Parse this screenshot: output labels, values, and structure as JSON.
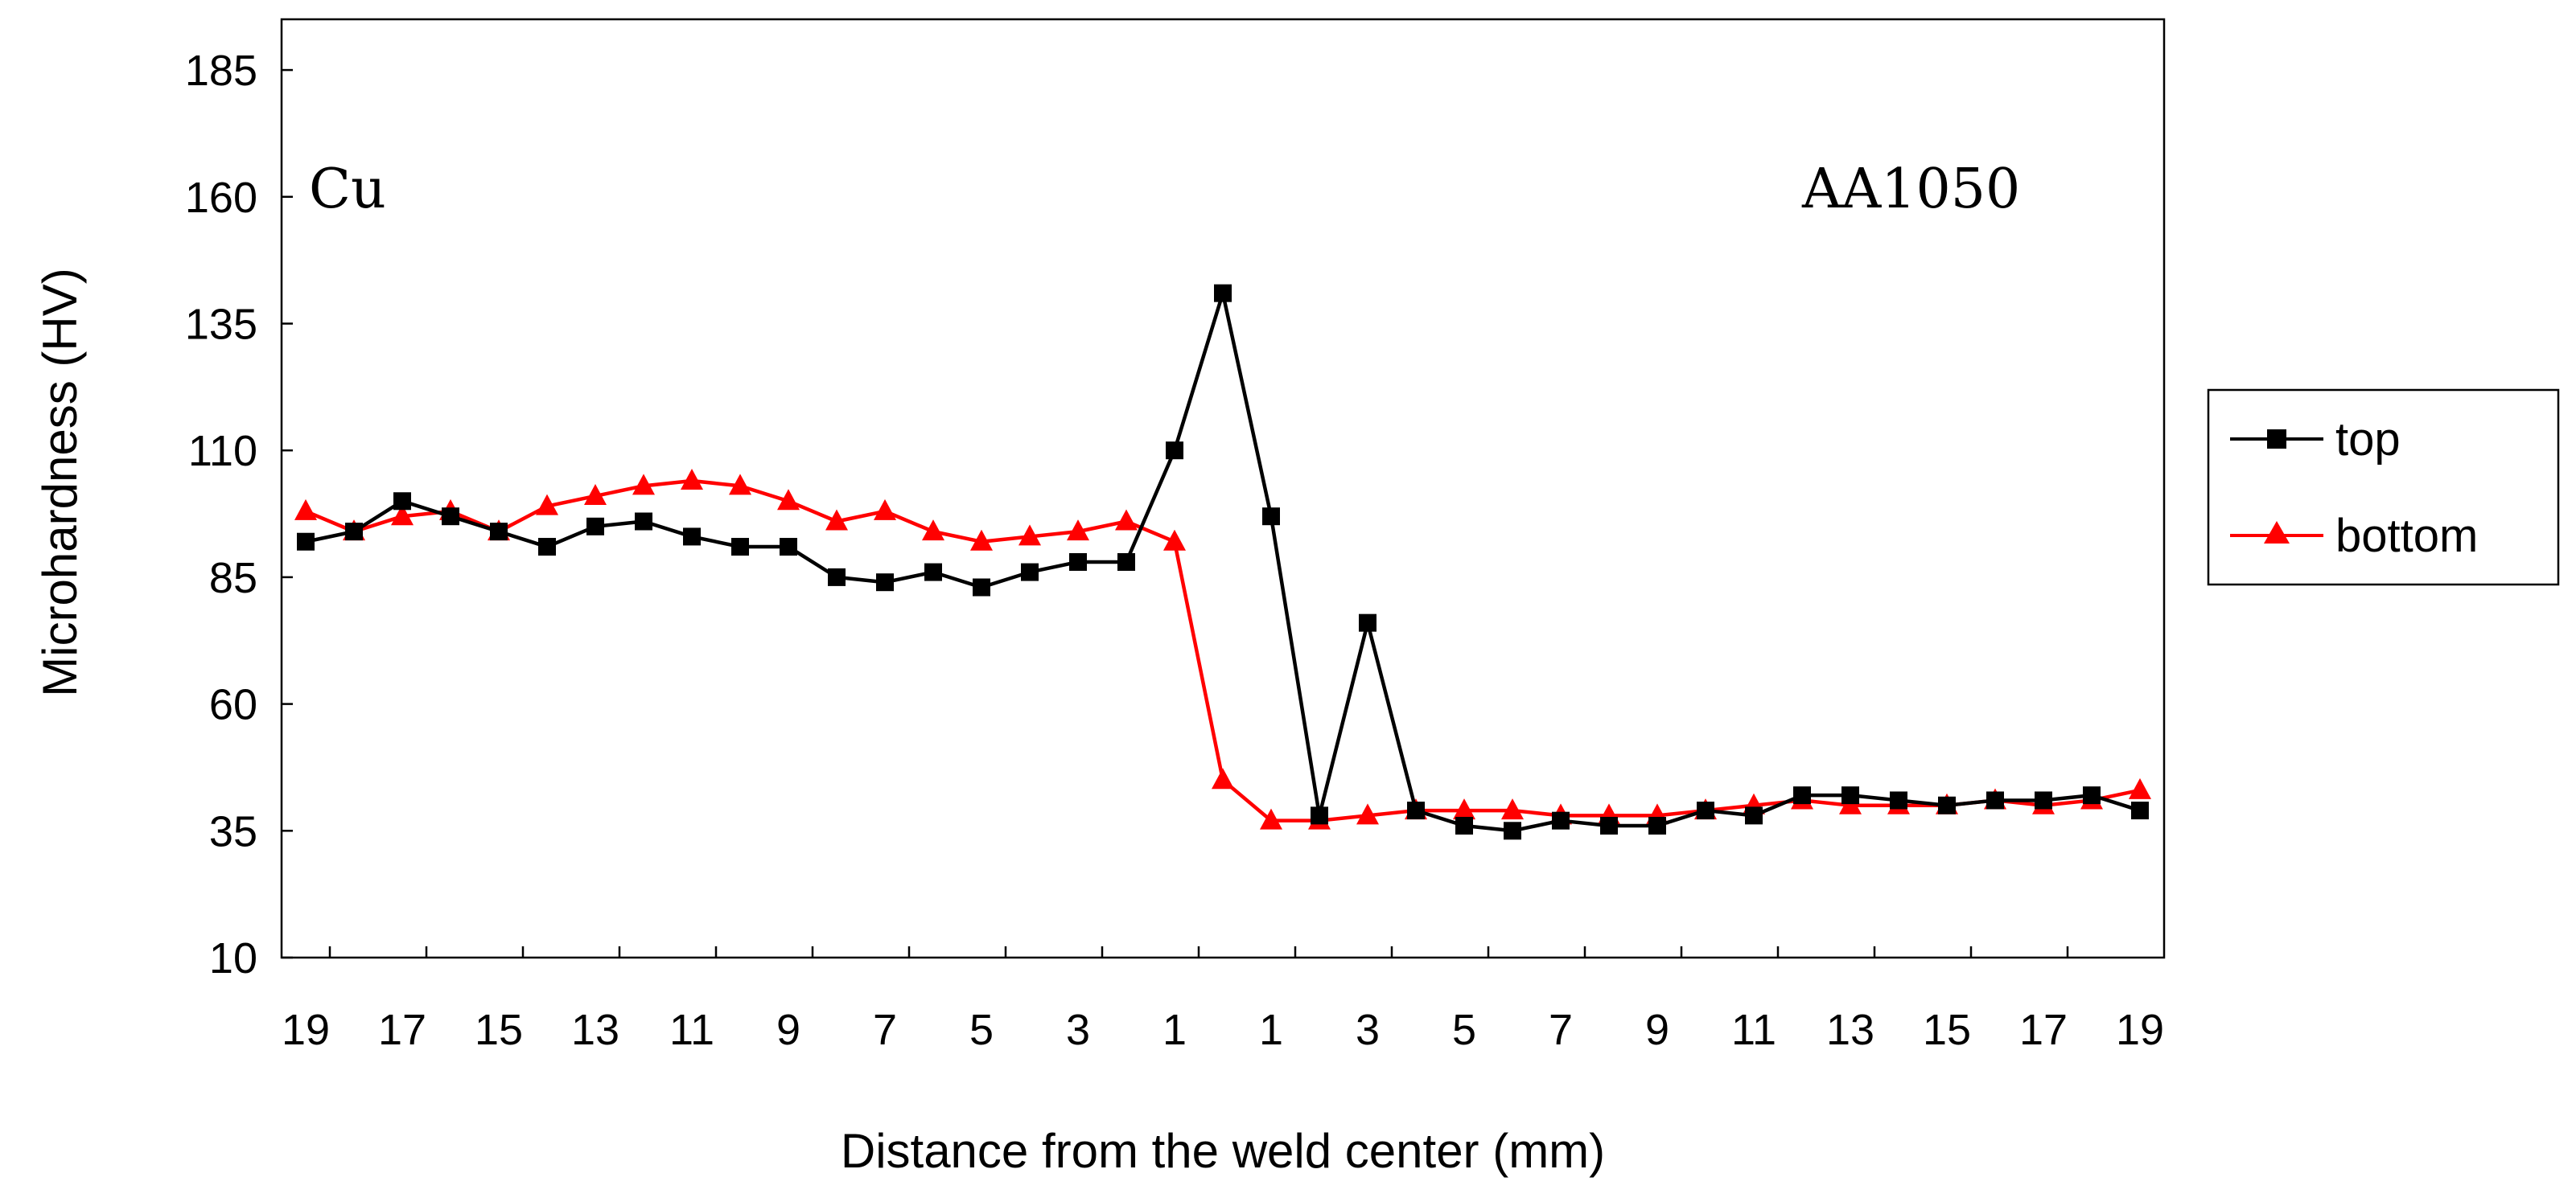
{
  "chart_data": {
    "type": "line",
    "title": "",
    "xlabel": "Distance from the weld center (mm)",
    "ylabel": "Microhardness (HV)",
    "ylim": [
      10,
      195
    ],
    "yticks": [
      10,
      35,
      60,
      85,
      110,
      135,
      160,
      185
    ],
    "xtick_labels": [
      "19",
      "17",
      "15",
      "13",
      "11",
      "9",
      "7",
      "5",
      "3",
      "1",
      "1",
      "3",
      "5",
      "7",
      "9",
      "11",
      "13",
      "15",
      "17",
      "19"
    ],
    "x": [
      -19,
      -18,
      -17,
      -16,
      -15,
      -14,
      -13,
      -12,
      -11,
      -10,
      -9,
      -8,
      -7,
      -6,
      -5,
      -4,
      -3,
      -2,
      -1,
      0,
      1,
      2,
      3,
      4,
      5,
      6,
      7,
      8,
      9,
      10,
      11,
      12,
      13,
      14,
      15,
      16,
      17,
      18,
      19
    ],
    "annotations": [
      "Cu",
      "AA1050"
    ],
    "legend_position": "right",
    "series": [
      {
        "name": "top",
        "color": "#000000",
        "marker": "square",
        "values": [
          92,
          94,
          100,
          97,
          94,
          91,
          95,
          96,
          93,
          91,
          91,
          85,
          84,
          86,
          83,
          86,
          88,
          88,
          110,
          141,
          97,
          38,
          76,
          39,
          36,
          35,
          37,
          36,
          36,
          39,
          38,
          42,
          42,
          41,
          40,
          41,
          41,
          42,
          39
        ]
      },
      {
        "name": "bottom",
        "color": "#ff0000",
        "marker": "triangle",
        "values": [
          98,
          94,
          97,
          98,
          94,
          99,
          101,
          103,
          104,
          103,
          100,
          96,
          98,
          94,
          92,
          93,
          94,
          96,
          92,
          45,
          37,
          37,
          38,
          39,
          39,
          39,
          38,
          38,
          38,
          39,
          40,
          41,
          40,
          40,
          40,
          41,
          40,
          41,
          43
        ]
      }
    ]
  }
}
